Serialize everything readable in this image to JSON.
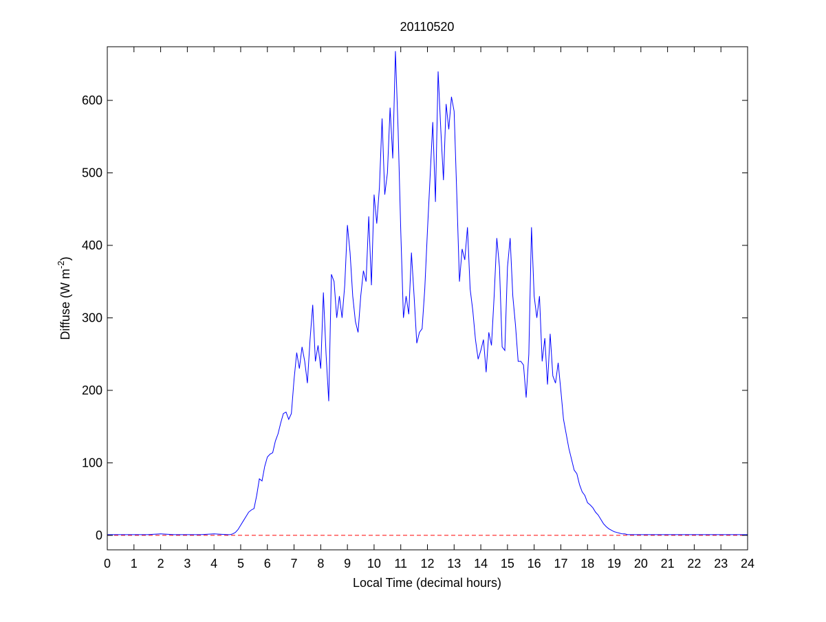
{
  "chart_data": {
    "type": "line",
    "title": "20110520",
    "xlabel": "Local Time (decimal hours)",
    "ylabel": [
      "Diffuse (W m",
      "-2",
      ")"
    ],
    "xlim": [
      0,
      24
    ],
    "ylim": [
      -20,
      674
    ],
    "xticks": [
      0,
      1,
      2,
      3,
      4,
      5,
      6,
      7,
      8,
      9,
      10,
      11,
      12,
      13,
      14,
      15,
      16,
      17,
      18,
      19,
      20,
      21,
      22,
      23,
      24
    ],
    "yticks": [
      0,
      100,
      200,
      300,
      400,
      500,
      600
    ],
    "reference_line": {
      "value": 0,
      "color": "#ff0000",
      "dashed": true
    },
    "series": [
      {
        "color": "#0000ff",
        "x": [
          0,
          0.5,
          1,
          1.5,
          2,
          2.5,
          3,
          3.5,
          4,
          4.5,
          4.6,
          4.7,
          4.8,
          4.9,
          5.0,
          5.1,
          5.2,
          5.3,
          5.4,
          5.5,
          5.6,
          5.7,
          5.8,
          5.9,
          6.0,
          6.1,
          6.2,
          6.3,
          6.4,
          6.5,
          6.6,
          6.7,
          6.8,
          6.9,
          7.0,
          7.1,
          7.2,
          7.3,
          7.4,
          7.5,
          7.6,
          7.7,
          7.8,
          7.9,
          8.0,
          8.1,
          8.2,
          8.3,
          8.4,
          8.5,
          8.6,
          8.7,
          8.8,
          8.9,
          9.0,
          9.1,
          9.2,
          9.3,
          9.4,
          9.5,
          9.6,
          9.7,
          9.8,
          9.9,
          10.0,
          10.1,
          10.2,
          10.3,
          10.4,
          10.5,
          10.6,
          10.7,
          10.8,
          10.9,
          11.0,
          11.1,
          11.2,
          11.3,
          11.4,
          11.5,
          11.6,
          11.7,
          11.8,
          11.9,
          12.0,
          12.1,
          12.2,
          12.3,
          12.4,
          12.5,
          12.6,
          12.7,
          12.8,
          12.9,
          13.0,
          13.1,
          13.2,
          13.3,
          13.4,
          13.5,
          13.6,
          13.7,
          13.8,
          13.9,
          14.0,
          14.1,
          14.2,
          14.3,
          14.4,
          14.5,
          14.6,
          14.7,
          14.8,
          14.9,
          15.0,
          15.1,
          15.2,
          15.3,
          15.4,
          15.5,
          15.6,
          15.7,
          15.8,
          15.9,
          16.0,
          16.1,
          16.2,
          16.3,
          16.4,
          16.5,
          16.6,
          16.7,
          16.8,
          16.9,
          17.0,
          17.1,
          17.2,
          17.3,
          17.4,
          17.5,
          17.6,
          17.7,
          17.8,
          17.9,
          18.0,
          18.1,
          18.2,
          18.3,
          18.4,
          18.5,
          18.6,
          18.7,
          18.8,
          18.9,
          19.0,
          19.1,
          19.2,
          19.3,
          19.4,
          19.5,
          19.6,
          19.7,
          19.8,
          19.9,
          20.0,
          20.5,
          21,
          21.5,
          22,
          22.5,
          23,
          23.5,
          24
        ],
        "values": [
          1,
          1,
          1,
          1,
          2,
          1,
          1,
          1,
          2,
          1,
          1,
          2,
          4,
          8,
          14,
          20,
          26,
          32,
          35,
          37,
          55,
          78,
          75,
          95,
          108,
          112,
          114,
          130,
          140,
          155,
          168,
          170,
          160,
          168,
          215,
          252,
          230,
          260,
          240,
          210,
          270,
          318,
          240,
          262,
          230,
          335,
          250,
          185,
          360,
          350,
          300,
          330,
          300,
          345,
          428,
          390,
          330,
          295,
          280,
          330,
          365,
          350,
          440,
          345,
          470,
          430,
          480,
          575,
          470,
          500,
          590,
          520,
          668,
          560,
          420,
          300,
          330,
          305,
          390,
          330,
          265,
          280,
          285,
          340,
          420,
          495,
          570,
          460,
          640,
          560,
          490,
          595,
          560,
          605,
          585,
          470,
          350,
          395,
          380,
          425,
          340,
          310,
          270,
          243,
          255,
          270,
          225,
          280,
          262,
          330,
          410,
          370,
          260,
          255,
          370,
          410,
          330,
          290,
          240,
          240,
          235,
          190,
          250,
          425,
          330,
          300,
          330,
          240,
          272,
          208,
          278,
          220,
          210,
          238,
          200,
          160,
          140,
          120,
          105,
          90,
          85,
          70,
          60,
          55,
          45,
          42,
          38,
          32,
          28,
          22,
          16,
          12,
          9,
          7,
          5,
          4,
          3,
          2,
          2,
          1,
          1,
          1,
          1,
          1,
          1,
          1,
          1,
          1,
          1,
          1,
          1,
          1,
          1
        ]
      }
    ]
  }
}
